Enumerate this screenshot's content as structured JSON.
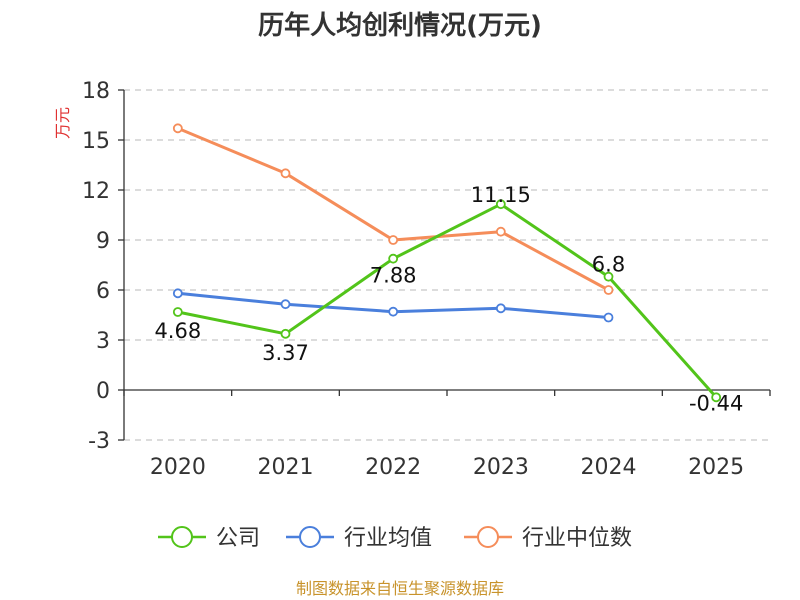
{
  "chart_data": {
    "type": "line",
    "title": "历年人均创利情况(万元)",
    "ylabel": "万元",
    "xlabel": "",
    "categories": [
      "2020",
      "2021",
      "2022",
      "2023",
      "2024",
      "2025"
    ],
    "ylim": [
      -3,
      18
    ],
    "yticks": [
      -3,
      0,
      3,
      6,
      9,
      12,
      15,
      18
    ],
    "grid": true,
    "legend_position": "bottom",
    "series": [
      {
        "name": "公司",
        "color": "#52c41a",
        "values": [
          4.68,
          3.37,
          7.88,
          11.15,
          6.8,
          -0.44
        ],
        "labels": [
          "4.68",
          "3.37",
          "7.88",
          "11.15",
          "6.8",
          "-0.44"
        ]
      },
      {
        "name": "行业均值",
        "color": "#4a7fdc",
        "values": [
          5.8,
          5.15,
          4.7,
          4.9,
          4.35,
          null
        ]
      },
      {
        "name": "行业中位数",
        "color": "#f58d5a",
        "values": [
          15.7,
          13.0,
          9.0,
          9.5,
          6.0,
          null
        ]
      }
    ]
  },
  "source_text": "制图数据来自恒生聚源数据库"
}
